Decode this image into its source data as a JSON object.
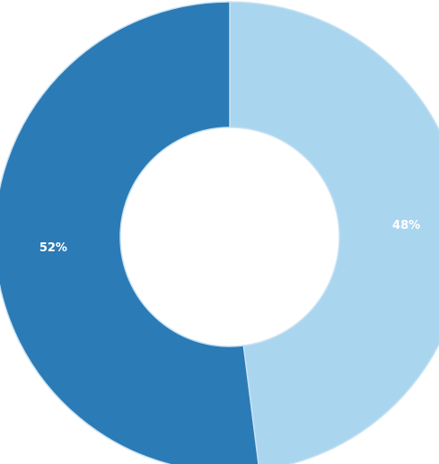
{
  "chart_data": {
    "type": "donut",
    "values": [
      48,
      52
    ],
    "value_labels": [
      "48%",
      "52%"
    ],
    "colors": [
      "#a9d5ef",
      "#2b7bb6"
    ]
  }
}
